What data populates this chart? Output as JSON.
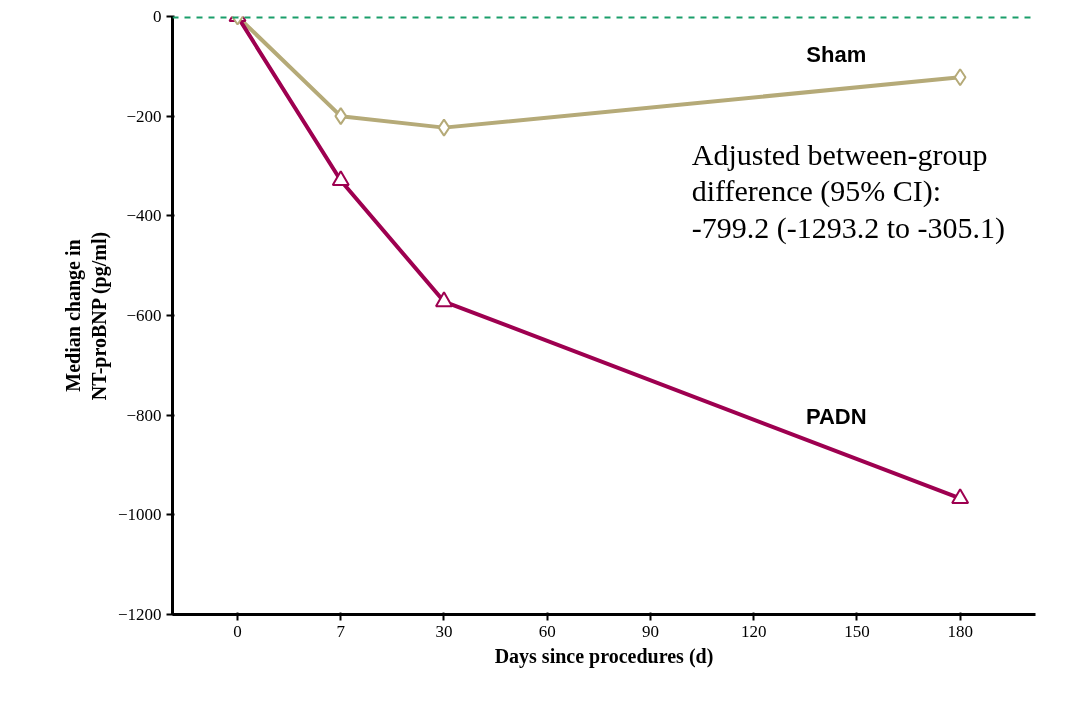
{
  "chart_data": {
    "type": "line",
    "xlabel": "Days since procedures (d)",
    "ylabel": "Median change in\nNT-proBNP (pg/ml)",
    "categories": [
      "0",
      "7",
      "30",
      "60",
      "90",
      "120",
      "150",
      "180"
    ],
    "series": [
      {
        "name": "Sham",
        "color": "#b5aa78",
        "marker": "diamond",
        "values": [
          0,
          -200,
          -223,
          null,
          null,
          null,
          null,
          -122
        ]
      },
      {
        "name": "PADN",
        "color": "#9e0050",
        "marker": "triangle",
        "values": [
          0,
          -329,
          -572,
          null,
          null,
          null,
          null,
          -967
        ]
      }
    ],
    "ylim": [
      -1200,
      0
    ],
    "yticks": [
      -1200,
      -1000,
      -800,
      -600,
      -400,
      -200,
      0
    ],
    "ref_lines": [
      {
        "axis": "y",
        "value": 0,
        "color": "#1a9e6a",
        "line_style": "dashed"
      }
    ],
    "annotations": [
      "Adjusted between-group\ndifference (95% CI):\n-799.2 (-1293.2 to -305.1)"
    ],
    "grid": false
  }
}
